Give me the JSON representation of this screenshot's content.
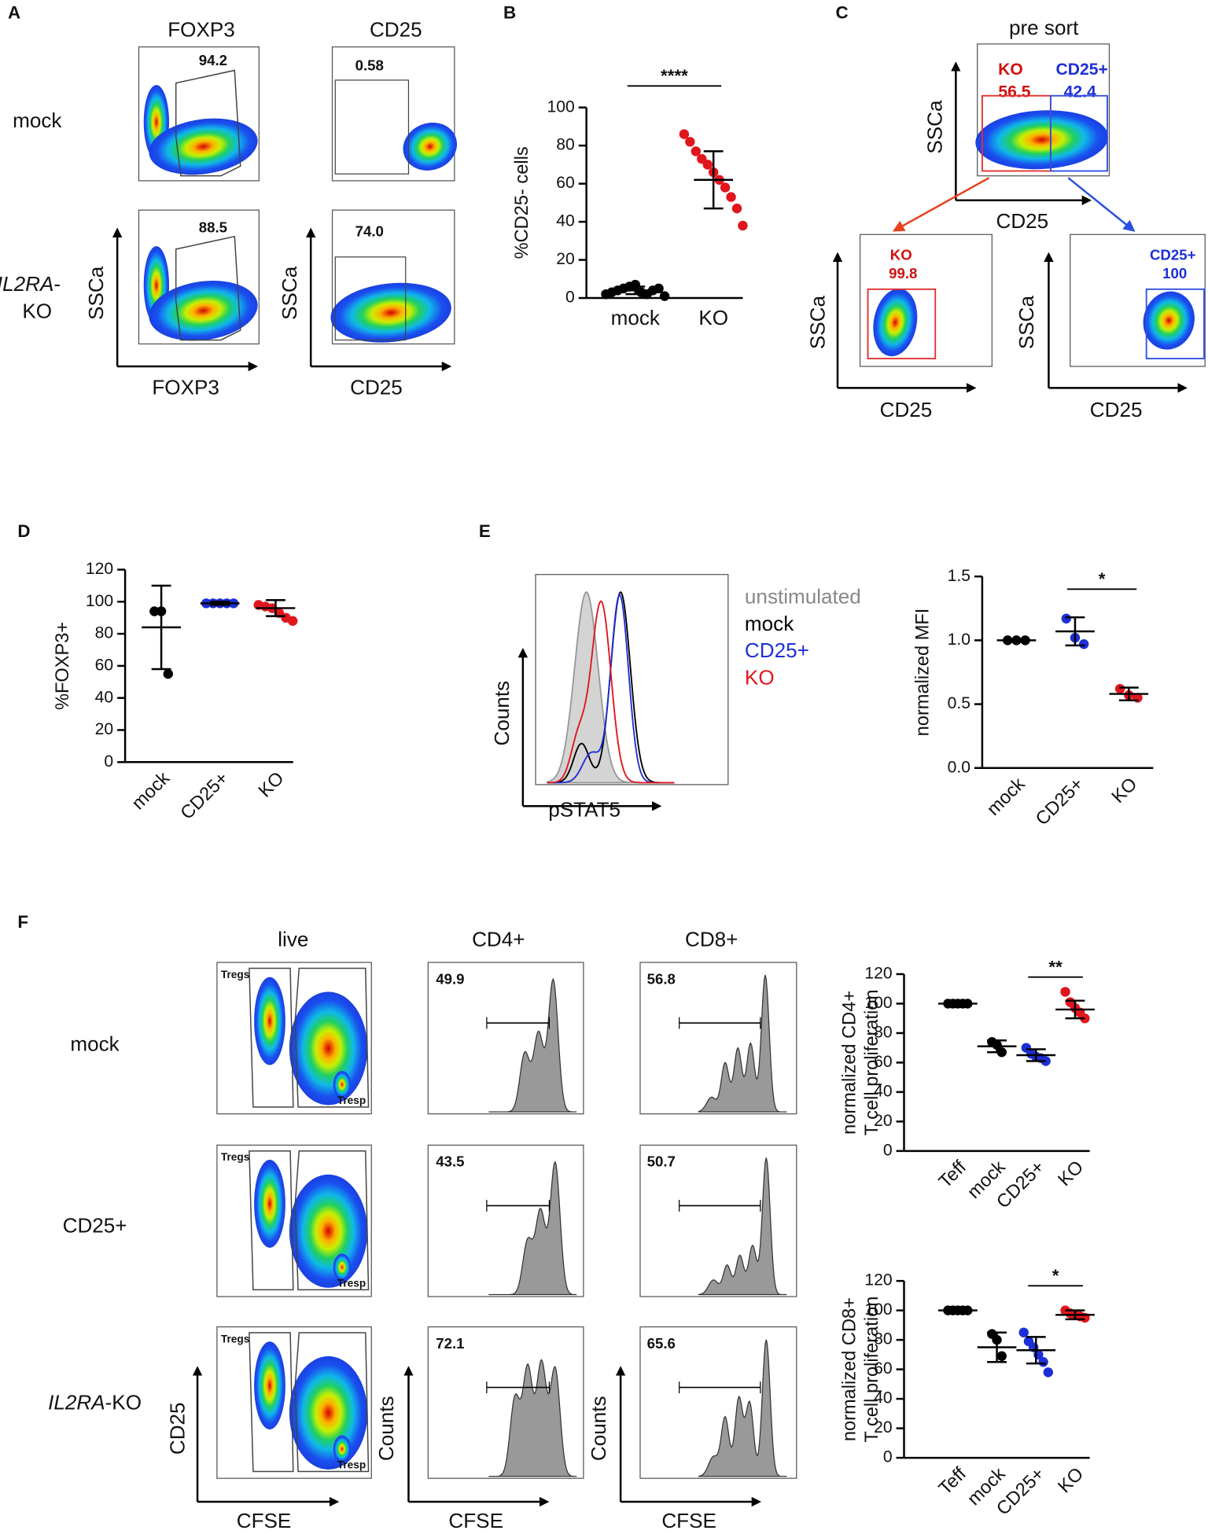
{
  "panels": {
    "A": {
      "label": "A",
      "columns": [
        "FOXP3",
        "CD25"
      ],
      "row1": "mock",
      "row2_italic": "IL2RA",
      "row2_dash": "-",
      "row2_rest": "KO",
      "gates": [
        "94.2",
        "0.58",
        "88.5",
        "74.0"
      ],
      "ylabel": "SSCa",
      "xlabels": [
        "FOXP3",
        "CD25"
      ]
    },
    "B": {
      "label": "B"
    },
    "C": {
      "label": "C",
      "title": "pre sort",
      "ylabel": "SSCa",
      "xlabel": "CD25",
      "gates": [
        {
          "name": "KO",
          "value": "56.5"
        },
        {
          "name": "CD25+",
          "value": "42.4"
        },
        {
          "name": "KO",
          "value": "99.8"
        },
        {
          "name": "CD25+",
          "value": "100"
        }
      ]
    },
    "D": {
      "label": "D"
    },
    "E": {
      "label": "E",
      "ylabel": "Counts",
      "xlabel": "pSTAT5",
      "legend": [
        "unstimulated",
        "mock",
        "CD25+",
        "KO"
      ]
    },
    "F": {
      "label": "F",
      "columns": [
        "live",
        "CD4+",
        "CD8+"
      ],
      "rows": [
        "mock",
        "CD25+"
      ],
      "row3_italic": "IL2RA",
      "row3_rest": "-KO",
      "gate_tregs": "Tregs",
      "gate_tresp": "Tresp",
      "cd4": [
        "49.9",
        "43.5",
        "72.1"
      ],
      "cd8": [
        "56.8",
        "50.7",
        "65.6"
      ],
      "live_ylabel": "CD25",
      "xlabel": "CFSE",
      "hist_ylabel": "Counts"
    }
  },
  "chart_data": [
    {
      "type": "dot",
      "ylabel": "%CD25- cells",
      "categories": [
        "mock",
        "KO"
      ],
      "colors": [
        "#000000",
        "#e0161c"
      ],
      "points": [
        [
          2,
          3,
          4,
          5,
          6,
          7,
          3,
          2,
          4,
          5,
          1
        ],
        [
          86,
          82,
          77,
          73,
          70,
          66,
          62,
          58,
          53,
          47,
          38
        ]
      ],
      "means": [
        4,
        62
      ],
      "sds": [
        2,
        15
      ],
      "ylim": [
        0,
        100
      ],
      "yticks": [
        0,
        20,
        40,
        60,
        80,
        100
      ],
      "significance": "****",
      "significance_between": [
        "mock",
        "KO"
      ]
    },
    {
      "type": "dot",
      "ylabel": "%FOXP3+",
      "categories": [
        "mock",
        "CD25+",
        "KO"
      ],
      "colors": [
        "#000000",
        "#1d2fd6",
        "#e0161c"
      ],
      "points": [
        [
          94,
          94,
          55
        ],
        [
          99,
          99,
          99,
          99,
          99
        ],
        [
          98,
          97,
          96,
          93,
          90,
          88
        ]
      ],
      "means": [
        84,
        99,
        96
      ],
      "sds": [
        26,
        1,
        5
      ],
      "ylim": [
        0,
        120
      ],
      "yticks": [
        0,
        20,
        40,
        60,
        80,
        100,
        120
      ]
    },
    {
      "type": "dot",
      "ylabel": "normalized MFI",
      "categories": [
        "mock",
        "CD25+",
        "KO"
      ],
      "colors": [
        "#000000",
        "#1d2fd6",
        "#e0161c"
      ],
      "points": [
        [
          1,
          1,
          1
        ],
        [
          1.17,
          1.02,
          0.97
        ],
        [
          0.62,
          0.57,
          0.55
        ]
      ],
      "means": [
        1,
        1.07,
        0.58
      ],
      "sds": [
        0,
        0.11,
        0.05
      ],
      "ylim": [
        0,
        1.5
      ],
      "yticks": [
        {
          "value": 0,
          "label": "0.0"
        },
        0.5,
        {
          "value": 1,
          "label": "1.0"
        },
        1.5
      ],
      "significance": "*",
      "significance_between": [
        "CD25+",
        "KO"
      ]
    },
    {
      "type": "dot",
      "ylabel": [
        "normalized CD4+",
        "T cell proliferation"
      ],
      "categories": [
        "Teff",
        "mock",
        "CD25+",
        "KO"
      ],
      "colors": [
        "#000000",
        "#000000",
        "#1d2fd6",
        "#e0161c"
      ],
      "points": [
        [
          100,
          100,
          100,
          100,
          100
        ],
        [
          74,
          72,
          67
        ],
        [
          70,
          66,
          64,
          63,
          61
        ],
        [
          108,
          101,
          97,
          94,
          90
        ]
      ],
      "means": [
        100,
        71,
        65,
        96
      ],
      "sds": [
        0,
        4,
        4,
        6
      ],
      "ylim": [
        0,
        120
      ],
      "yticks": [
        0,
        20,
        40,
        60,
        80,
        100,
        120
      ],
      "significance": "**",
      "significance_between": [
        "CD25+",
        "KO"
      ]
    },
    {
      "type": "dot",
      "ylabel": [
        "normalized CD8+",
        "T cell proliferation"
      ],
      "categories": [
        "Teff",
        "mock",
        "CD25+",
        "KO"
      ],
      "colors": [
        "#000000",
        "#000000",
        "#1d2fd6",
        "#e0161c"
      ],
      "points": [
        [
          100,
          100,
          100,
          100,
          100
        ],
        [
          84,
          80,
          69
        ],
        [
          85,
          79,
          75,
          70,
          65,
          58
        ],
        [
          100,
          98,
          97,
          96,
          95
        ]
      ],
      "means": [
        100,
        75,
        73,
        97
      ],
      "sds": [
        0,
        10,
        9,
        3
      ],
      "ylim": [
        0,
        120
      ],
      "yticks": [
        0,
        20,
        40,
        60,
        80,
        100,
        120
      ],
      "significance": "*",
      "significance_between": [
        "CD25+",
        "KO"
      ]
    }
  ]
}
